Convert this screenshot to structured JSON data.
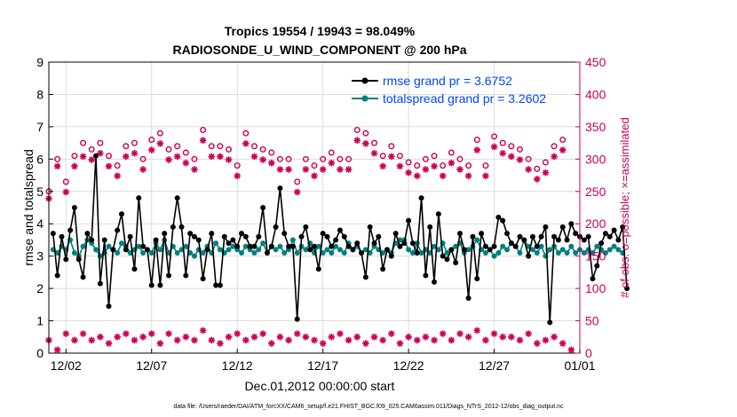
{
  "chart_data": {
    "type": "line",
    "title_line1": "Tropics 19554 / 19943 = 98.049%",
    "title_line2": "RADIOSONDE_U_WIND_COMPONENT @ 200 hPa",
    "xlabel": "Dec.01,2012 00:00:00 start",
    "ylabel_left": "rmse and totalspread",
    "ylabel_right": "# of obs: o=possible; ×=assimilated",
    "footer": "data file: /Users/raeder/DAI/ATM_forcXX/CAM6_setup/f.e21.FHIST_BGC.f09_025.CAM6assim.011/Diags_NTrS_2012-12/obs_diag_output.nc",
    "xlim": [
      1,
      32
    ],
    "ylim_left": [
      0,
      9
    ],
    "ylim_right": [
      0,
      450
    ],
    "x_ticks": [
      {
        "x": 2,
        "label": "12/02"
      },
      {
        "x": 7,
        "label": "12/07"
      },
      {
        "x": 12,
        "label": "12/12"
      },
      {
        "x": 17,
        "label": "12/17"
      },
      {
        "x": 22,
        "label": "12/22"
      },
      {
        "x": 27,
        "label": "12/27"
      },
      {
        "x": 32,
        "label": "01/01"
      }
    ],
    "y_ticks_left": [
      0,
      1,
      2,
      3,
      4,
      5,
      6,
      7,
      8,
      9
    ],
    "y_ticks_right": [
      0,
      50,
      100,
      150,
      200,
      250,
      300,
      350,
      400,
      450
    ],
    "legend": [
      {
        "name": "rmse  grand pr = 3.6752",
        "color": "#000000"
      },
      {
        "name": "totalspread  grand pr = 3.2602",
        "color": "#008080"
      }
    ],
    "colors": {
      "rmse": "#000000",
      "spread": "#008080",
      "obs": "#cc0055",
      "legend_text": "#0044ff",
      "grid": "#dcdcdc"
    },
    "x_start": 1.25,
    "x_step": 0.25,
    "series": [
      {
        "name": "rmse",
        "values": [
          3.7,
          2.4,
          3.6,
          2.9,
          3.8,
          4.5,
          2.9,
          2.35,
          3.7,
          3.5,
          6.1,
          2.15,
          3.5,
          1.45,
          3.2,
          3.8,
          4.3,
          3.2,
          3.6,
          2.6,
          4.8,
          3.3,
          3.2,
          2.1,
          3.5,
          2.1,
          3.7,
          2.4,
          3.9,
          4.8,
          3.9,
          2.4,
          3.7,
          3.6,
          3.5,
          2.3,
          3.2,
          3.7,
          2.1,
          2.1,
          3.6,
          3.4,
          3.5,
          3.3,
          3.7,
          3.6,
          3.3,
          3.3,
          3.6,
          4.5,
          3.1,
          3.3,
          3.9,
          5.1,
          3.7,
          3.3,
          3.3,
          1.05,
          3.6,
          3.9,
          3.2,
          3.3,
          2.6,
          3.7,
          3.6,
          3.3,
          3.5,
          3.8,
          3.6,
          3.3,
          3.2,
          3.4,
          3.1,
          2.35,
          3.9,
          3.4,
          3.6,
          2.6,
          3.2,
          3.0,
          3.7,
          3.3,
          3.4,
          4.1,
          3.4,
          3.1,
          4.8,
          2.4,
          3.9,
          2.2,
          4.3,
          3.0,
          2.9,
          3.2,
          2.8,
          3.7,
          3.2,
          1.7,
          3.6,
          2.3,
          3.7,
          3.3,
          3.2,
          3.3,
          4.2,
          4.1,
          3.7,
          3.4,
          3.3,
          3.6,
          3.5,
          3.0,
          3.6,
          3.3,
          3.6,
          3.9,
          0.95,
          3.6,
          3.5,
          3.9,
          3.5,
          4.0,
          3.7,
          3.6,
          3.5,
          3.6,
          2.3,
          2.7,
          3.4,
          3.7,
          3.6,
          3.8,
          3.5,
          3.9,
          2.0
        ]
      },
      {
        "name": "totalspread",
        "values": [
          3.2,
          3.1,
          3.3,
          3.2,
          3.5,
          3.1,
          3.0,
          3.3,
          3.5,
          3.4,
          3.2,
          3.0,
          3.1,
          3.3,
          3.2,
          3.1,
          3.4,
          3.3,
          3.1,
          3.2,
          3.3,
          3.1,
          3.2,
          3.1,
          3.4,
          3.2,
          3.5,
          3.1,
          3.3,
          3.1,
          3.2,
          3.3,
          3.1,
          3.0,
          3.2,
          3.1,
          3.3,
          3.1,
          3.4,
          3.2,
          3.1,
          3.2,
          3.3,
          3.2,
          3.1,
          3.3,
          3.2,
          3.1,
          3.2,
          3.4,
          3.1,
          3.3,
          3.2,
          3.3,
          3.1,
          3.2,
          3.5,
          3.1,
          3.3,
          3.2,
          3.4,
          3.1,
          3.3,
          3.1,
          3.2,
          3.1,
          3.3,
          3.2,
          3.1,
          3.4,
          3.2,
          3.3,
          3.1,
          3.2,
          3.1,
          3.3,
          3.2,
          3.1,
          3.2,
          3.1,
          3.4,
          3.5,
          3.5,
          3.2,
          3.1,
          3.4,
          3.1,
          3.2,
          3.1,
          3.3,
          3.2,
          3.4,
          3.1,
          3.2,
          3.3,
          3.4,
          3.1,
          3.2,
          3.3,
          3.5,
          3.2,
          3.1,
          3.2,
          3.0,
          3.1,
          3.3,
          3.2,
          3.4,
          3.3,
          3.1,
          3.5,
          3.3,
          3.2,
          3.1,
          3.3,
          3.0,
          3.2,
          3.3,
          3.1,
          3.2,
          3.1,
          3.3,
          3.1,
          3.2,
          3.1,
          3.2,
          3.1,
          3.3,
          3.2,
          3.1,
          3.2,
          3.3,
          3.2,
          3.1
        ]
      }
    ],
    "obs_possible": [
      [
        1,
        250
      ],
      [
        1.5,
        300
      ],
      [
        2,
        265
      ],
      [
        2.5,
        305
      ],
      [
        3,
        325
      ],
      [
        3.5,
        315
      ],
      [
        4,
        325
      ],
      [
        4.5,
        305
      ],
      [
        5,
        290
      ],
      [
        5.5,
        320
      ],
      [
        6,
        325
      ],
      [
        6.5,
        300
      ],
      [
        7,
        330
      ],
      [
        7.5,
        340
      ],
      [
        8,
        315
      ],
      [
        8.5,
        320
      ],
      [
        9,
        310
      ],
      [
        9.5,
        300
      ],
      [
        10,
        345
      ],
      [
        10.5,
        320
      ],
      [
        11,
        320
      ],
      [
        11.5,
        315
      ],
      [
        12,
        290
      ],
      [
        12.5,
        340
      ],
      [
        13,
        320
      ],
      [
        13.5,
        315
      ],
      [
        14,
        310
      ],
      [
        14.5,
        300
      ],
      [
        15,
        300
      ],
      [
        15.5,
        265
      ],
      [
        16,
        300
      ],
      [
        16.5,
        290
      ],
      [
        17,
        300
      ],
      [
        17.5,
        310
      ],
      [
        18,
        300
      ],
      [
        18.5,
        300
      ],
      [
        19,
        345
      ],
      [
        19.5,
        340
      ],
      [
        20,
        325
      ],
      [
        20.5,
        305
      ],
      [
        21,
        320
      ],
      [
        21.5,
        305
      ],
      [
        22,
        295
      ],
      [
        22.5,
        290
      ],
      [
        23,
        300
      ],
      [
        23.5,
        305
      ],
      [
        24,
        290
      ],
      [
        24.5,
        310
      ],
      [
        25,
        300
      ],
      [
        25.5,
        290
      ],
      [
        26,
        330
      ],
      [
        26.5,
        290
      ],
      [
        27,
        335
      ],
      [
        27.5,
        325
      ],
      [
        28,
        320
      ],
      [
        28.5,
        315
      ],
      [
        29,
        300
      ],
      [
        29.5,
        285
      ],
      [
        30,
        295
      ],
      [
        30.5,
        320
      ],
      [
        31,
        330
      ]
    ],
    "obs_assimilated": [
      [
        1,
        250
      ],
      [
        1.5,
        300
      ],
      [
        2,
        260
      ],
      [
        2.5,
        300
      ],
      [
        3,
        315
      ],
      [
        3.5,
        310
      ],
      [
        4,
        320
      ],
      [
        4.5,
        300
      ],
      [
        5,
        285
      ],
      [
        5.5,
        315
      ],
      [
        6,
        320
      ],
      [
        6.5,
        295
      ],
      [
        7,
        325
      ],
      [
        7.5,
        335
      ],
      [
        8,
        310
      ],
      [
        8.5,
        315
      ],
      [
        9,
        305
      ],
      [
        9.5,
        295
      ],
      [
        10,
        340
      ],
      [
        10.5,
        315
      ],
      [
        11,
        315
      ],
      [
        11.5,
        310
      ],
      [
        12,
        285
      ],
      [
        12.5,
        335
      ],
      [
        13,
        315
      ],
      [
        13.5,
        310
      ],
      [
        14,
        305
      ],
      [
        14.5,
        295
      ],
      [
        15,
        295
      ],
      [
        15.5,
        260
      ],
      [
        16,
        295
      ],
      [
        16.5,
        285
      ],
      [
        17,
        295
      ],
      [
        17.5,
        305
      ],
      [
        18,
        295
      ],
      [
        18.5,
        295
      ],
      [
        19,
        340
      ],
      [
        19.5,
        335
      ],
      [
        20,
        320
      ],
      [
        20.5,
        300
      ],
      [
        21,
        315
      ],
      [
        21.5,
        300
      ],
      [
        22,
        290
      ],
      [
        22.5,
        285
      ],
      [
        23,
        295
      ],
      [
        23.5,
        300
      ],
      [
        24,
        285
      ],
      [
        24.5,
        305
      ],
      [
        25,
        295
      ],
      [
        25.5,
        285
      ],
      [
        26,
        325
      ],
      [
        26.5,
        285
      ],
      [
        27,
        330
      ],
      [
        27.5,
        320
      ],
      [
        28,
        315
      ],
      [
        28.5,
        310
      ],
      [
        29,
        295
      ],
      [
        29.5,
        280
      ],
      [
        30,
        290
      ],
      [
        30.5,
        315
      ],
      [
        31,
        325
      ]
    ],
    "obs_rejected": [
      [
        1,
        20
      ],
      [
        1.5,
        5
      ],
      [
        2,
        30
      ],
      [
        2.5,
        20
      ],
      [
        3,
        30
      ],
      [
        3.5,
        20
      ],
      [
        4,
        25
      ],
      [
        4.5,
        15
      ],
      [
        5,
        25
      ],
      [
        5.5,
        30
      ],
      [
        6,
        20
      ],
      [
        6.5,
        25
      ],
      [
        7,
        30
      ],
      [
        7.5,
        15
      ],
      [
        8,
        30
      ],
      [
        8.5,
        20
      ],
      [
        9,
        25
      ],
      [
        9.5,
        20
      ],
      [
        10,
        35
      ],
      [
        10.5,
        20
      ],
      [
        11,
        15
      ],
      [
        11.5,
        25
      ],
      [
        12,
        30
      ],
      [
        12.5,
        20
      ],
      [
        13,
        25
      ],
      [
        13.5,
        30
      ],
      [
        14,
        15
      ],
      [
        14.5,
        25
      ],
      [
        15,
        20
      ],
      [
        15.5,
        30
      ],
      [
        16,
        25
      ],
      [
        16.5,
        20
      ],
      [
        17,
        15
      ],
      [
        17.5,
        25
      ],
      [
        18,
        30
      ],
      [
        18.5,
        20
      ],
      [
        19,
        25
      ],
      [
        19.5,
        15
      ],
      [
        20,
        25
      ],
      [
        20.5,
        20
      ],
      [
        21,
        30
      ],
      [
        21.5,
        15
      ],
      [
        22,
        25
      ],
      [
        22.5,
        20
      ],
      [
        23,
        25
      ],
      [
        23.5,
        20
      ],
      [
        24,
        30
      ],
      [
        24.5,
        20
      ],
      [
        25,
        30
      ],
      [
        25.5,
        25
      ],
      [
        26,
        35
      ],
      [
        26.5,
        20
      ],
      [
        27,
        30
      ],
      [
        27.5,
        25
      ],
      [
        28,
        25
      ],
      [
        28.5,
        20
      ],
      [
        29,
        30
      ],
      [
        29.5,
        15
      ],
      [
        30,
        20
      ],
      [
        30.5,
        25
      ],
      [
        31,
        15
      ],
      [
        31.5,
        5
      ]
    ]
  }
}
